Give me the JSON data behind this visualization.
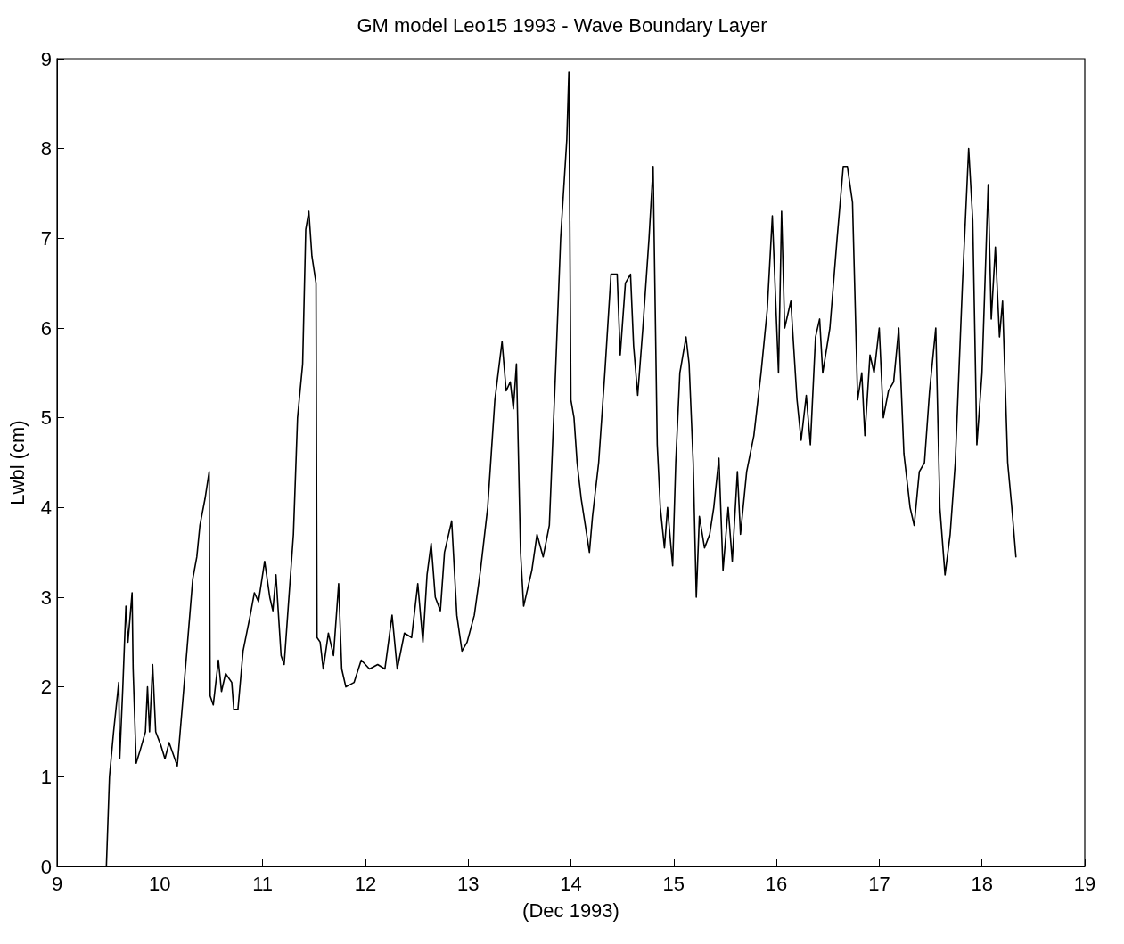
{
  "chart_data": {
    "type": "line",
    "title": "GM model Leo15 1993 - Wave Boundary Layer",
    "xlabel": "(Dec 1993)",
    "ylabel": "Lwbl (cm)",
    "xlim": [
      9,
      19
    ],
    "xticks": [
      9,
      10,
      11,
      12,
      13,
      14,
      15,
      16,
      17,
      18,
      19
    ],
    "ylim": [
      0,
      9
    ],
    "yticks": [
      0,
      1,
      2,
      3,
      4,
      5,
      6,
      7,
      8,
      9
    ],
    "grid": false,
    "marker": "none",
    "line_style": "solid",
    "x": [
      9.48,
      9.51,
      9.55,
      9.6,
      9.61,
      9.64,
      9.67,
      9.69,
      9.73,
      9.74,
      9.77,
      9.81,
      9.86,
      9.88,
      9.9,
      9.93,
      9.96,
      10.01,
      10.05,
      10.09,
      10.17,
      10.22,
      10.27,
      10.32,
      10.36,
      10.39,
      10.44,
      10.48,
      10.49,
      10.52,
      10.57,
      10.6,
      10.64,
      10.7,
      10.72,
      10.76,
      10.81,
      10.88,
      10.92,
      10.96,
      11.02,
      11.07,
      11.1,
      11.13,
      11.18,
      11.21,
      11.25,
      11.3,
      11.34,
      11.39,
      11.42,
      11.45,
      11.48,
      11.52,
      11.53,
      11.56,
      11.59,
      11.64,
      11.69,
      11.74,
      11.77,
      11.81,
      11.89,
      11.96,
      12.04,
      12.12,
      12.19,
      12.26,
      12.31,
      12.38,
      12.45,
      12.51,
      12.56,
      12.6,
      12.64,
      12.68,
      12.73,
      12.77,
      12.84,
      12.89,
      12.94,
      12.99,
      13.06,
      13.12,
      13.19,
      13.26,
      13.33,
      13.37,
      13.41,
      13.44,
      13.47,
      13.51,
      13.54,
      13.58,
      13.62,
      13.67,
      13.73,
      13.79,
      13.85,
      13.9,
      13.96,
      13.98,
      14.0,
      14.03,
      14.06,
      14.1,
      14.14,
      14.18,
      14.21,
      14.27,
      14.33,
      14.39,
      14.45,
      14.48,
      14.53,
      14.58,
      14.61,
      14.65,
      14.7,
      14.76,
      14.8,
      14.84,
      14.87,
      14.91,
      14.94,
      14.99,
      15.02,
      15.06,
      15.12,
      15.15,
      15.19,
      15.22,
      15.25,
      15.3,
      15.35,
      15.39,
      15.44,
      15.48,
      15.53,
      15.57,
      15.62,
      15.65,
      15.71,
      15.78,
      15.85,
      15.91,
      15.96,
      16.02,
      16.05,
      16.08,
      16.14,
      16.2,
      16.24,
      16.29,
      16.33,
      16.38,
      16.42,
      16.45,
      16.52,
      16.59,
      16.65,
      16.69,
      16.74,
      16.79,
      16.83,
      16.86,
      16.91,
      16.95,
      17.0,
      17.04,
      17.09,
      17.14,
      17.19,
      17.24,
      17.3,
      17.34,
      17.39,
      17.44,
      17.49,
      17.55,
      17.59,
      17.64,
      17.69,
      17.74,
      17.81,
      17.87,
      17.91,
      17.95,
      18.0,
      18.06,
      18.09,
      18.13,
      18.17,
      18.2,
      18.25,
      18.29,
      18.33
    ],
    "series": [
      {
        "color": "#000000",
        "values": [
          0,
          1.0,
          1.5,
          2.05,
          1.2,
          2.0,
          2.9,
          2.5,
          3.05,
          2.2,
          1.15,
          1.3,
          1.5,
          2.0,
          1.5,
          2.25,
          1.5,
          1.35,
          1.2,
          1.38,
          1.12,
          1.8,
          2.5,
          3.2,
          3.45,
          3.8,
          4.1,
          4.4,
          1.9,
          1.8,
          2.3,
          1.95,
          2.15,
          2.05,
          1.75,
          1.75,
          2.4,
          2.8,
          3.05,
          2.95,
          3.4,
          3.0,
          2.85,
          3.25,
          2.35,
          2.25,
          2.9,
          3.7,
          5.0,
          5.6,
          7.1,
          7.3,
          6.8,
          6.5,
          2.55,
          2.5,
          2.2,
          2.6,
          2.35,
          3.15,
          2.2,
          2.0,
          2.05,
          2.3,
          2.2,
          2.25,
          2.2,
          2.8,
          2.2,
          2.6,
          2.55,
          3.15,
          2.5,
          3.25,
          3.6,
          3.0,
          2.85,
          3.5,
          3.85,
          2.8,
          2.4,
          2.5,
          2.8,
          3.3,
          4.0,
          5.2,
          5.85,
          5.3,
          5.4,
          5.1,
          5.6,
          3.5,
          2.9,
          3.1,
          3.3,
          3.7,
          3.45,
          3.8,
          5.5,
          7.0,
          8.1,
          8.85,
          5.2,
          5.0,
          4.5,
          4.1,
          3.8,
          3.5,
          3.9,
          4.5,
          5.5,
          6.6,
          6.6,
          5.7,
          6.5,
          6.6,
          5.8,
          5.25,
          6.0,
          7.0,
          7.8,
          4.7,
          4.0,
          3.55,
          4.0,
          3.35,
          4.5,
          5.5,
          5.9,
          5.6,
          4.5,
          3.0,
          3.9,
          3.55,
          3.7,
          4.0,
          4.55,
          3.3,
          4.0,
          3.4,
          4.4,
          3.7,
          4.4,
          4.8,
          5.5,
          6.2,
          7.25,
          5.5,
          7.3,
          6.0,
          6.3,
          5.2,
          4.75,
          5.25,
          4.7,
          5.9,
          6.1,
          5.5,
          6.0,
          7.0,
          7.8,
          7.8,
          7.4,
          5.2,
          5.5,
          4.8,
          5.7,
          5.5,
          6.0,
          5.0,
          5.3,
          5.4,
          6.0,
          4.6,
          4.0,
          3.8,
          4.4,
          4.5,
          5.3,
          6.0,
          4.0,
          3.25,
          3.7,
          4.5,
          6.5,
          8.0,
          7.2,
          4.7,
          5.5,
          7.6,
          6.1,
          6.9,
          5.9,
          6.3,
          4.5,
          4.0,
          3.45
        ]
      }
    ]
  }
}
